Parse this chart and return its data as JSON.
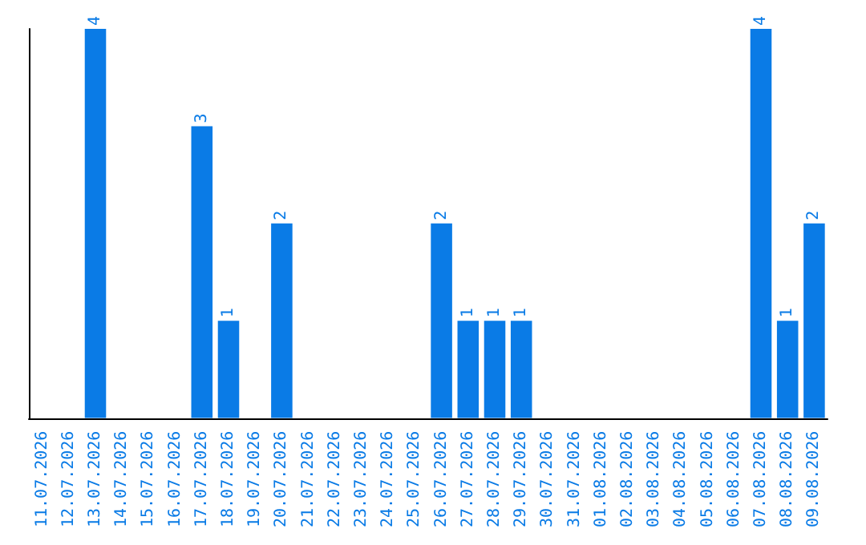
{
  "chart_data": {
    "type": "bar",
    "tick_labels": "x",
    "color": "#0a7be6",
    "categories": [
      "11.07.2026",
      "12.07.2026",
      "13.07.2026",
      "14.07.2026",
      "15.07.2026",
      "16.07.2026",
      "17.07.2026",
      "18.07.2026",
      "19.07.2026",
      "20.07.2026",
      "21.07.2026",
      "22.07.2026",
      "23.07.2026",
      "24.07.2026",
      "25.07.2026",
      "26.07.2026",
      "27.07.2026",
      "28.07.2026",
      "29.07.2026",
      "30.07.2026",
      "31.07.2026",
      "01.08.2026",
      "02.08.2026",
      "03.08.2026",
      "04.08.2026",
      "05.08.2026",
      "06.08.2026",
      "07.08.2026",
      "08.08.2026",
      "09.08.2026"
    ],
    "values": [
      0,
      0,
      4,
      0,
      0,
      0,
      3,
      1,
      0,
      2,
      0,
      0,
      0,
      0,
      0,
      2,
      1,
      1,
      1,
      0,
      0,
      0,
      0,
      0,
      0,
      0,
      0,
      4,
      1,
      2
    ],
    "value_labels": [
      null,
      null,
      "4",
      null,
      null,
      null,
      "3",
      "1",
      null,
      "2",
      null,
      null,
      null,
      null,
      null,
      "2",
      "1",
      "1",
      "1",
      null,
      null,
      null,
      null,
      null,
      null,
      null,
      null,
      "4",
      "1",
      "2"
    ]
  }
}
